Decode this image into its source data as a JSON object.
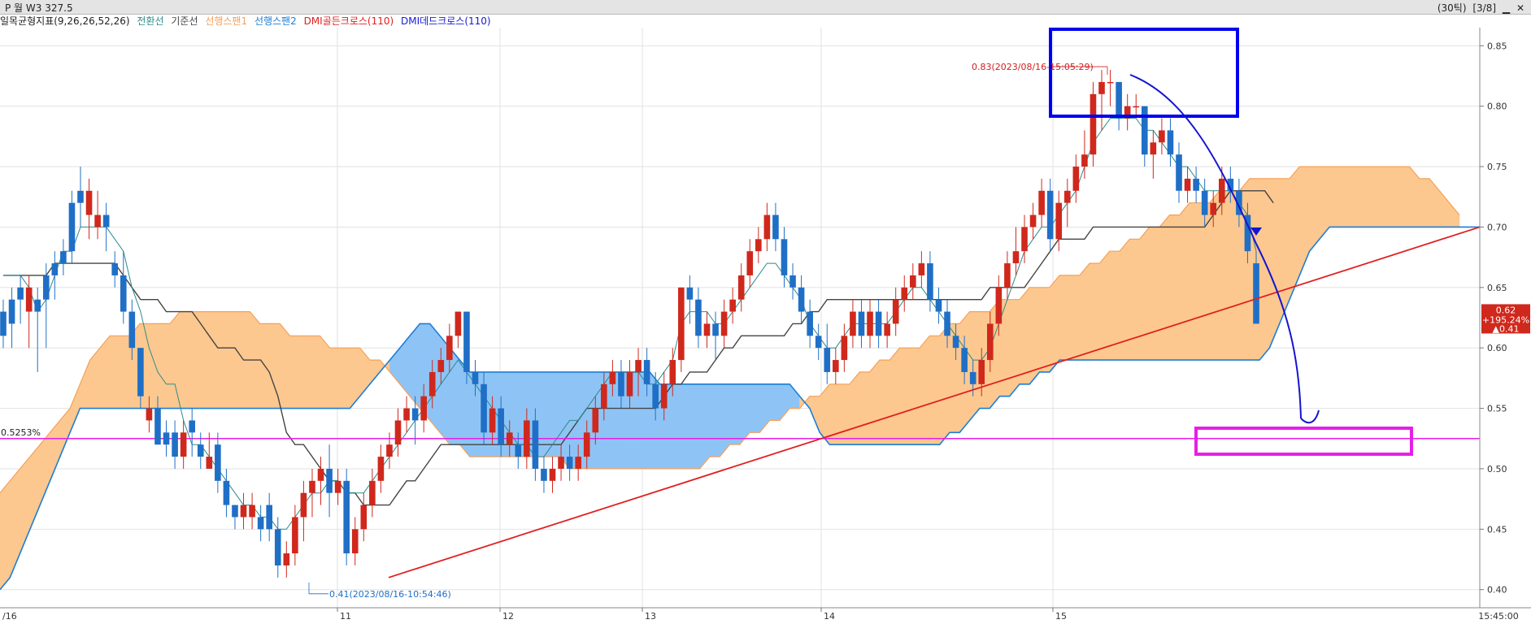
{
  "window": {
    "title": "P 월 W3 327.5",
    "period": "(30틱)",
    "page": "[3/8]",
    "min_icon": "minimize-icon",
    "close_icon": "close-icon"
  },
  "indicator_legend": {
    "name": "일목균형지표(9,26,26,52,26)",
    "items": [
      {
        "label": "전환선",
        "color": "#2e8b8b"
      },
      {
        "label": "기준선",
        "color": "#444444"
      },
      {
        "label": "선행스팬1",
        "color": "#f5a05a"
      },
      {
        "label": "선행스팬2",
        "color": "#1c7ed6"
      },
      {
        "label": "DMI골든크로스(110)",
        "color": "#e02020"
      },
      {
        "label": "DMI데드크로스(110)",
        "color": "#1a1ad0"
      }
    ]
  },
  "chart_data": {
    "type": "candlestick",
    "x_labels": [
      "/16",
      "11",
      "12",
      "13",
      "14",
      "15",
      "15:45:00"
    ],
    "y_ticks": [
      "0.85",
      "0.80",
      "0.75",
      "0.70",
      "0.65",
      "0.60",
      "0.55",
      "0.50",
      "0.45",
      "0.40"
    ],
    "ylim": [
      0.385,
      0.865
    ],
    "candles": [
      [
        0.63,
        0.61,
        0.64,
        0.6
      ],
      [
        0.64,
        0.62,
        0.65,
        0.6
      ],
      [
        0.65,
        0.64,
        0.66,
        0.62
      ],
      [
        0.63,
        0.65,
        0.66,
        0.6
      ],
      [
        0.64,
        0.63,
        0.65,
        0.58
      ],
      [
        0.66,
        0.64,
        0.67,
        0.6
      ],
      [
        0.67,
        0.66,
        0.68,
        0.64
      ],
      [
        0.68,
        0.67,
        0.69,
        0.66
      ],
      [
        0.72,
        0.68,
        0.73,
        0.67
      ],
      [
        0.73,
        0.72,
        0.75,
        0.7
      ],
      [
        0.71,
        0.73,
        0.74,
        0.69
      ],
      [
        0.7,
        0.71,
        0.73,
        0.69
      ],
      [
        0.71,
        0.7,
        0.72,
        0.68
      ],
      [
        0.67,
        0.66,
        0.68,
        0.65
      ],
      [
        0.66,
        0.63,
        0.68,
        0.62
      ],
      [
        0.63,
        0.6,
        0.64,
        0.59
      ],
      [
        0.6,
        0.56,
        0.6,
        0.55
      ],
      [
        0.54,
        0.55,
        0.56,
        0.53
      ],
      [
        0.55,
        0.52,
        0.56,
        0.52
      ],
      [
        0.53,
        0.52,
        0.54,
        0.51
      ],
      [
        0.53,
        0.51,
        0.54,
        0.5
      ],
      [
        0.51,
        0.53,
        0.54,
        0.5
      ],
      [
        0.54,
        0.53,
        0.55,
        0.51
      ],
      [
        0.52,
        0.51,
        0.53,
        0.5
      ],
      [
        0.5,
        0.51,
        0.53,
        0.5
      ],
      [
        0.52,
        0.49,
        0.53,
        0.48
      ],
      [
        0.49,
        0.47,
        0.5,
        0.46
      ],
      [
        0.47,
        0.46,
        0.47,
        0.45
      ],
      [
        0.46,
        0.47,
        0.48,
        0.45
      ],
      [
        0.46,
        0.47,
        0.48,
        0.45
      ],
      [
        0.46,
        0.45,
        0.47,
        0.44
      ],
      [
        0.47,
        0.45,
        0.48,
        0.44
      ],
      [
        0.45,
        0.42,
        0.46,
        0.41
      ],
      [
        0.42,
        0.43,
        0.44,
        0.41
      ],
      [
        0.43,
        0.46,
        0.47,
        0.42
      ],
      [
        0.46,
        0.48,
        0.49,
        0.44
      ],
      [
        0.48,
        0.49,
        0.5,
        0.46
      ],
      [
        0.49,
        0.5,
        0.51,
        0.47
      ],
      [
        0.5,
        0.48,
        0.52,
        0.46
      ],
      [
        0.48,
        0.49,
        0.5,
        0.47
      ],
      [
        0.49,
        0.43,
        0.5,
        0.42
      ],
      [
        0.43,
        0.45,
        0.46,
        0.42
      ],
      [
        0.45,
        0.47,
        0.48,
        0.44
      ],
      [
        0.47,
        0.49,
        0.5,
        0.46
      ],
      [
        0.49,
        0.51,
        0.52,
        0.48
      ],
      [
        0.51,
        0.52,
        0.53,
        0.5
      ],
      [
        0.52,
        0.54,
        0.55,
        0.51
      ],
      [
        0.54,
        0.55,
        0.56,
        0.53
      ],
      [
        0.55,
        0.54,
        0.56,
        0.52
      ],
      [
        0.54,
        0.56,
        0.57,
        0.53
      ],
      [
        0.56,
        0.58,
        0.59,
        0.55
      ],
      [
        0.58,
        0.59,
        0.6,
        0.57
      ],
      [
        0.59,
        0.61,
        0.62,
        0.58
      ],
      [
        0.61,
        0.63,
        0.63,
        0.6
      ],
      [
        0.63,
        0.58,
        0.63,
        0.57
      ],
      [
        0.58,
        0.57,
        0.59,
        0.56
      ],
      [
        0.57,
        0.53,
        0.58,
        0.52
      ],
      [
        0.53,
        0.55,
        0.56,
        0.52
      ],
      [
        0.55,
        0.52,
        0.56,
        0.51
      ],
      [
        0.52,
        0.53,
        0.54,
        0.51
      ],
      [
        0.52,
        0.51,
        0.53,
        0.5
      ],
      [
        0.51,
        0.54,
        0.55,
        0.5
      ],
      [
        0.54,
        0.5,
        0.55,
        0.49
      ],
      [
        0.5,
        0.49,
        0.51,
        0.48
      ],
      [
        0.49,
        0.5,
        0.51,
        0.48
      ],
      [
        0.5,
        0.51,
        0.52,
        0.49
      ],
      [
        0.51,
        0.5,
        0.52,
        0.49
      ],
      [
        0.5,
        0.51,
        0.52,
        0.49
      ],
      [
        0.51,
        0.53,
        0.54,
        0.5
      ],
      [
        0.53,
        0.55,
        0.56,
        0.52
      ],
      [
        0.55,
        0.57,
        0.58,
        0.54
      ],
      [
        0.57,
        0.58,
        0.59,
        0.56
      ],
      [
        0.58,
        0.56,
        0.59,
        0.55
      ],
      [
        0.56,
        0.58,
        0.59,
        0.55
      ],
      [
        0.58,
        0.59,
        0.6,
        0.56
      ],
      [
        0.59,
        0.57,
        0.6,
        0.56
      ],
      [
        0.57,
        0.55,
        0.58,
        0.54
      ],
      [
        0.55,
        0.57,
        0.58,
        0.54
      ],
      [
        0.57,
        0.59,
        0.6,
        0.56
      ],
      [
        0.59,
        0.65,
        0.65,
        0.58
      ],
      [
        0.65,
        0.64,
        0.66,
        0.62
      ],
      [
        0.64,
        0.61,
        0.65,
        0.6
      ],
      [
        0.61,
        0.62,
        0.63,
        0.6
      ],
      [
        0.62,
        0.61,
        0.63,
        0.59
      ],
      [
        0.61,
        0.63,
        0.64,
        0.6
      ],
      [
        0.63,
        0.64,
        0.65,
        0.62
      ],
      [
        0.64,
        0.66,
        0.67,
        0.63
      ],
      [
        0.66,
        0.68,
        0.69,
        0.65
      ],
      [
        0.68,
        0.69,
        0.7,
        0.67
      ],
      [
        0.69,
        0.71,
        0.72,
        0.68
      ],
      [
        0.71,
        0.69,
        0.72,
        0.68
      ],
      [
        0.69,
        0.66,
        0.7,
        0.65
      ],
      [
        0.66,
        0.65,
        0.67,
        0.64
      ],
      [
        0.65,
        0.63,
        0.66,
        0.62
      ],
      [
        0.63,
        0.61,
        0.64,
        0.6
      ],
      [
        0.61,
        0.6,
        0.62,
        0.59
      ],
      [
        0.6,
        0.58,
        0.62,
        0.57
      ],
      [
        0.58,
        0.59,
        0.6,
        0.57
      ],
      [
        0.59,
        0.61,
        0.62,
        0.58
      ],
      [
        0.61,
        0.63,
        0.64,
        0.6
      ],
      [
        0.63,
        0.61,
        0.64,
        0.6
      ],
      [
        0.61,
        0.63,
        0.64,
        0.6
      ],
      [
        0.63,
        0.61,
        0.64,
        0.6
      ],
      [
        0.61,
        0.62,
        0.63,
        0.6
      ],
      [
        0.62,
        0.64,
        0.65,
        0.61
      ],
      [
        0.64,
        0.65,
        0.66,
        0.63
      ],
      [
        0.65,
        0.66,
        0.67,
        0.64
      ],
      [
        0.66,
        0.67,
        0.68,
        0.65
      ],
      [
        0.67,
        0.64,
        0.68,
        0.63
      ],
      [
        0.64,
        0.63,
        0.65,
        0.62
      ],
      [
        0.63,
        0.61,
        0.64,
        0.6
      ],
      [
        0.61,
        0.6,
        0.62,
        0.59
      ],
      [
        0.6,
        0.58,
        0.61,
        0.57
      ],
      [
        0.58,
        0.57,
        0.59,
        0.56
      ],
      [
        0.57,
        0.59,
        0.6,
        0.56
      ],
      [
        0.59,
        0.62,
        0.63,
        0.58
      ],
      [
        0.62,
        0.65,
        0.66,
        0.61
      ],
      [
        0.65,
        0.67,
        0.68,
        0.64
      ],
      [
        0.67,
        0.68,
        0.7,
        0.66
      ],
      [
        0.68,
        0.7,
        0.71,
        0.67
      ],
      [
        0.7,
        0.71,
        0.72,
        0.69
      ],
      [
        0.71,
        0.73,
        0.74,
        0.7
      ],
      [
        0.73,
        0.69,
        0.74,
        0.68
      ],
      [
        0.69,
        0.72,
        0.73,
        0.68
      ],
      [
        0.72,
        0.73,
        0.74,
        0.7
      ],
      [
        0.73,
        0.75,
        0.76,
        0.72
      ],
      [
        0.75,
        0.76,
        0.78,
        0.74
      ],
      [
        0.76,
        0.81,
        0.82,
        0.75
      ],
      [
        0.81,
        0.82,
        0.83,
        0.78
      ],
      [
        0.82,
        0.82,
        0.83,
        0.8
      ],
      [
        0.82,
        0.79,
        0.82,
        0.78
      ],
      [
        0.79,
        0.8,
        0.81,
        0.78
      ],
      [
        0.8,
        0.8,
        0.81,
        0.79
      ],
      [
        0.8,
        0.76,
        0.8,
        0.75
      ],
      [
        0.76,
        0.77,
        0.78,
        0.74
      ],
      [
        0.77,
        0.78,
        0.79,
        0.76
      ],
      [
        0.78,
        0.76,
        0.79,
        0.75
      ],
      [
        0.76,
        0.73,
        0.77,
        0.72
      ],
      [
        0.73,
        0.74,
        0.75,
        0.72
      ],
      [
        0.74,
        0.73,
        0.75,
        0.72
      ],
      [
        0.73,
        0.71,
        0.74,
        0.7
      ],
      [
        0.71,
        0.72,
        0.73,
        0.7
      ],
      [
        0.72,
        0.74,
        0.75,
        0.71
      ],
      [
        0.74,
        0.73,
        0.75,
        0.72
      ],
      [
        0.73,
        0.71,
        0.74,
        0.7
      ],
      [
        0.71,
        0.68,
        0.72,
        0.67
      ],
      [
        0.67,
        0.62,
        0.68,
        0.62
      ]
    ],
    "tenkan": [
      0.66,
      0.66,
      0.66,
      0.65,
      0.63,
      0.64,
      0.66,
      0.68,
      0.68,
      0.7,
      0.7,
      0.7,
      0.7,
      0.69,
      0.68,
      0.65,
      0.63,
      0.6,
      0.58,
      0.57,
      0.57,
      0.54,
      0.52,
      0.52,
      0.51,
      0.5,
      0.49,
      0.48,
      0.47,
      0.47,
      0.46,
      0.46,
      0.45,
      0.45,
      0.46,
      0.47,
      0.48,
      0.48,
      0.49,
      0.49,
      0.48,
      0.48,
      0.48,
      0.49,
      0.5,
      0.51,
      0.52,
      0.53,
      0.54,
      0.55,
      0.56,
      0.57,
      0.58,
      0.59,
      0.58,
      0.57,
      0.56,
      0.55,
      0.54,
      0.53,
      0.52,
      0.52,
      0.51,
      0.51,
      0.52,
      0.53,
      0.54,
      0.54,
      0.55,
      0.56,
      0.57,
      0.58,
      0.58,
      0.58,
      0.58,
      0.57,
      0.57,
      0.58,
      0.59,
      0.62,
      0.63,
      0.63,
      0.63,
      0.62,
      0.62,
      0.63,
      0.64,
      0.65,
      0.66,
      0.67,
      0.67,
      0.66,
      0.65,
      0.64,
      0.62,
      0.61,
      0.6,
      0.6,
      0.61,
      0.62,
      0.62,
      0.62,
      0.62,
      0.62,
      0.63,
      0.64,
      0.65,
      0.65,
      0.64,
      0.63,
      0.62,
      0.61,
      0.6,
      0.59,
      0.59,
      0.6,
      0.62,
      0.64,
      0.66,
      0.68,
      0.69,
      0.7,
      0.7,
      0.71,
      0.72,
      0.73,
      0.75,
      0.77,
      0.78,
      0.79,
      0.79,
      0.79,
      0.79,
      0.78,
      0.78,
      0.77,
      0.76,
      0.75,
      0.75,
      0.74,
      0.73,
      0.73,
      0.73,
      0.73,
      0.72,
      0.71,
      0.68
    ],
    "kijun": [
      0.66,
      0.66,
      0.66,
      0.66,
      0.66,
      0.66,
      0.67,
      0.67,
      0.67,
      0.67,
      0.67,
      0.67,
      0.67,
      0.67,
      0.66,
      0.65,
      0.64,
      0.64,
      0.64,
      0.63,
      0.63,
      0.63,
      0.63,
      0.62,
      0.61,
      0.6,
      0.6,
      0.6,
      0.59,
      0.59,
      0.59,
      0.58,
      0.56,
      0.53,
      0.52,
      0.52,
      0.51,
      0.5,
      0.49,
      0.49,
      0.48,
      0.48,
      0.47,
      0.47,
      0.47,
      0.47,
      0.48,
      0.49,
      0.49,
      0.5,
      0.51,
      0.52,
      0.52,
      0.52,
      0.52,
      0.52,
      0.52,
      0.52,
      0.52,
      0.52,
      0.52,
      0.52,
      0.52,
      0.52,
      0.52,
      0.52,
      0.53,
      0.54,
      0.55,
      0.55,
      0.55,
      0.55,
      0.55,
      0.55,
      0.55,
      0.55,
      0.55,
      0.56,
      0.57,
      0.57,
      0.58,
      0.58,
      0.58,
      0.59,
      0.6,
      0.6,
      0.61,
      0.61,
      0.61,
      0.61,
      0.61,
      0.61,
      0.62,
      0.62,
      0.63,
      0.63,
      0.64,
      0.64,
      0.64,
      0.64,
      0.64,
      0.64,
      0.64,
      0.64,
      0.64,
      0.64,
      0.64,
      0.64,
      0.64,
      0.64,
      0.64,
      0.64,
      0.64,
      0.64,
      0.64,
      0.65,
      0.65,
      0.65,
      0.65,
      0.65,
      0.66,
      0.67,
      0.68,
      0.69,
      0.69,
      0.69,
      0.69,
      0.7,
      0.7,
      0.7,
      0.7,
      0.7,
      0.7,
      0.7,
      0.7,
      0.7,
      0.7,
      0.7,
      0.7,
      0.7,
      0.7,
      0.71,
      0.72,
      0.73,
      0.73,
      0.73,
      0.73,
      0.73,
      0.72
    ],
    "span1": [
      0.48,
      0.49,
      0.5,
      0.51,
      0.52,
      0.53,
      0.54,
      0.55,
      0.57,
      0.59,
      0.6,
      0.61,
      0.61,
      0.61,
      0.62,
      0.62,
      0.62,
      0.62,
      0.63,
      0.63,
      0.63,
      0.63,
      0.63,
      0.63,
      0.63,
      0.63,
      0.62,
      0.62,
      0.62,
      0.61,
      0.61,
      0.61,
      0.61,
      0.6,
      0.6,
      0.6,
      0.6,
      0.59,
      0.59,
      0.58,
      0.57,
      0.56,
      0.55,
      0.54,
      0.53,
      0.52,
      0.52,
      0.51,
      0.51,
      0.51,
      0.51,
      0.51,
      0.51,
      0.51,
      0.51,
      0.51,
      0.51,
      0.5,
      0.5,
      0.5,
      0.5,
      0.5,
      0.5,
      0.5,
      0.5,
      0.5,
      0.5,
      0.5,
      0.5,
      0.5,
      0.5,
      0.51,
      0.51,
      0.52,
      0.52,
      0.53,
      0.53,
      0.54,
      0.54,
      0.55,
      0.55,
      0.56,
      0.56,
      0.57,
      0.57,
      0.57,
      0.58,
      0.58,
      0.59,
      0.59,
      0.6,
      0.6,
      0.6,
      0.61,
      0.61,
      0.62,
      0.62,
      0.63,
      0.63,
      0.63,
      0.64,
      0.64,
      0.64,
      0.65,
      0.65,
      0.65,
      0.66,
      0.66,
      0.66,
      0.67,
      0.67,
      0.68,
      0.68,
      0.69,
      0.69,
      0.7,
      0.7,
      0.71,
      0.71,
      0.72,
      0.72,
      0.72,
      0.73,
      0.73,
      0.73,
      0.74,
      0.74,
      0.74,
      0.74,
      0.74,
      0.75,
      0.75,
      0.75,
      0.75,
      0.75,
      0.75,
      0.75,
      0.75,
      0.75,
      0.75,
      0.75,
      0.75,
      0.74,
      0.74,
      0.73,
      0.72,
      0.71
    ],
    "span2": [
      0.4,
      0.41,
      0.43,
      0.45,
      0.47,
      0.49,
      0.51,
      0.53,
      0.55,
      0.55,
      0.55,
      0.55,
      0.55,
      0.55,
      0.55,
      0.55,
      0.55,
      0.55,
      0.55,
      0.55,
      0.55,
      0.55,
      0.55,
      0.55,
      0.55,
      0.55,
      0.55,
      0.55,
      0.55,
      0.55,
      0.55,
      0.55,
      0.55,
      0.55,
      0.55,
      0.55,
      0.56,
      0.57,
      0.58,
      0.59,
      0.6,
      0.61,
      0.62,
      0.62,
      0.61,
      0.6,
      0.59,
      0.58,
      0.58,
      0.58,
      0.58,
      0.58,
      0.58,
      0.58,
      0.58,
      0.58,
      0.58,
      0.58,
      0.58,
      0.58,
      0.58,
      0.58,
      0.58,
      0.58,
      0.58,
      0.58,
      0.57,
      0.57,
      0.57,
      0.57,
      0.57,
      0.57,
      0.57,
      0.57,
      0.57,
      0.57,
      0.57,
      0.57,
      0.57,
      0.57,
      0.56,
      0.55,
      0.53,
      0.52,
      0.52,
      0.52,
      0.52,
      0.52,
      0.52,
      0.52,
      0.52,
      0.52,
      0.52,
      0.52,
      0.52,
      0.53,
      0.53,
      0.54,
      0.55,
      0.55,
      0.56,
      0.56,
      0.57,
      0.57,
      0.58,
      0.58,
      0.59,
      0.59,
      0.59,
      0.59,
      0.59,
      0.59,
      0.59,
      0.59,
      0.59,
      0.59,
      0.59,
      0.59,
      0.59,
      0.59,
      0.59,
      0.59,
      0.59,
      0.59,
      0.59,
      0.59,
      0.59,
      0.6,
      0.62,
      0.64,
      0.66,
      0.68,
      0.69,
      0.7,
      0.7,
      0.7,
      0.7,
      0.7,
      0.7,
      0.7,
      0.7,
      0.7,
      0.7,
      0.7,
      0.7,
      0.7,
      0.7,
      0.7,
      0.7
    ],
    "annotations": {
      "high_label": "0.83(2023/08/16-15:05:29)",
      "low_label": "0.41(2023/08/16-10:54:46)",
      "left_price_label": "0.5253%",
      "current_price": "0.62",
      "current_change_pct": "+195.24%",
      "current_change": "▲0.41"
    },
    "horizontal_line": 0.525,
    "colors": {
      "up": "#d0281c",
      "down": "#1f6fc6",
      "tenkan": "#2e8b8b",
      "kijun": "#444444",
      "span1": "#f5a05a",
      "span2": "#1c7ed6",
      "cloud_bull": "#fcc88f",
      "cloud_bear": "#8ec4f5",
      "support_line": "#e02020",
      "horizontal_line": "#e81ee8",
      "target_box": "#e81ee8",
      "high_box": "#0000ee",
      "hand_arrow": "#1515d0"
    }
  }
}
